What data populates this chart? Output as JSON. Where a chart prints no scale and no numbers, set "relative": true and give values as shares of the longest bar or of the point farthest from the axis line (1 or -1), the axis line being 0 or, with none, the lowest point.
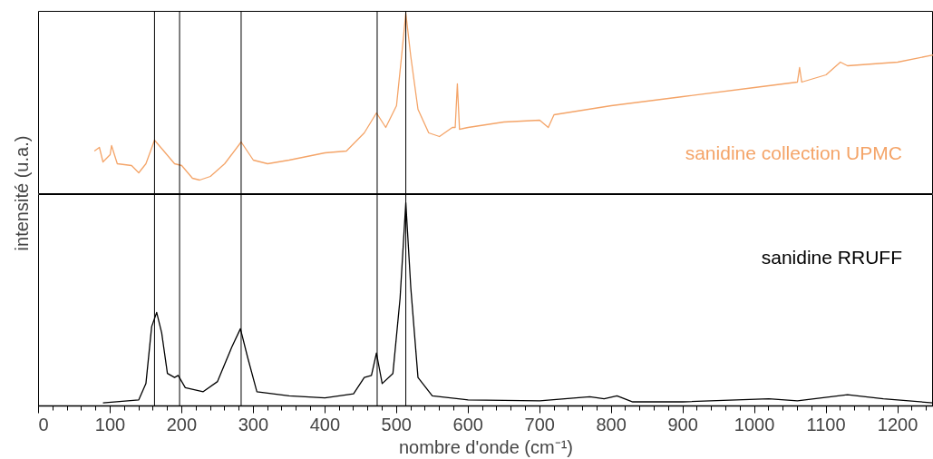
{
  "chart_data": [
    {
      "type": "line",
      "relative": true,
      "ylabel": "intensité (u.a.)",
      "tick_labels": false,
      "grid": false,
      "xlim": [
        0,
        1250
      ],
      "xticks": [
        0,
        100,
        200,
        300,
        400,
        500,
        600,
        700,
        800,
        900,
        1000,
        1100,
        1200
      ],
      "ref_lines": [
        {
          "axis": "x",
          "value": 162
        },
        {
          "axis": "x",
          "value": 197
        },
        {
          "axis": "x",
          "value": 283
        },
        {
          "axis": "x",
          "value": 473
        },
        {
          "axis": "x",
          "value": 513
        }
      ],
      "series": [
        {
          "name": "sanidine collection UPMC",
          "color": "#f4a468",
          "x": [
            78,
            85,
            90,
            100,
            102,
            110,
            130,
            140,
            150,
            162,
            175,
            190,
            200,
            215,
            225,
            240,
            260,
            283,
            300,
            320,
            350,
            400,
            430,
            455,
            472,
            485,
            500,
            507,
            513,
            520,
            530,
            545,
            560,
            578,
            582,
            585,
            588,
            600,
            650,
            700,
            712,
            720,
            800,
            900,
            1000,
            1060,
            1063,
            1066,
            1100,
            1120,
            1130,
            1200,
            1250
          ],
          "values": [
            0.24,
            0.26,
            0.18,
            0.22,
            0.27,
            0.17,
            0.16,
            0.12,
            0.17,
            0.3,
            0.24,
            0.17,
            0.16,
            0.09,
            0.08,
            0.1,
            0.17,
            0.29,
            0.19,
            0.17,
            0.19,
            0.23,
            0.24,
            0.34,
            0.45,
            0.37,
            0.49,
            0.76,
            1.0,
            0.76,
            0.47,
            0.34,
            0.32,
            0.37,
            0.37,
            0.61,
            0.36,
            0.37,
            0.4,
            0.41,
            0.37,
            0.44,
            0.49,
            0.54,
            0.59,
            0.62,
            0.7,
            0.62,
            0.66,
            0.73,
            0.71,
            0.73,
            0.77
          ]
        }
      ]
    },
    {
      "type": "line",
      "relative": true,
      "xlabel": "nombre d'onde (cm⁻¹)",
      "tick_labels": "x",
      "grid": false,
      "xlim": [
        0,
        1250
      ],
      "xticks": [
        0,
        100,
        200,
        300,
        400,
        500,
        600,
        700,
        800,
        900,
        1000,
        1100,
        1200
      ],
      "ref_lines": [
        {
          "axis": "x",
          "value": 162
        },
        {
          "axis": "x",
          "value": 197
        },
        {
          "axis": "x",
          "value": 283
        },
        {
          "axis": "x",
          "value": 473
        },
        {
          "axis": "x",
          "value": 513
        }
      ],
      "series": [
        {
          "name": "sanidine RRUFF",
          "color": "#000000",
          "x": [
            90,
            140,
            150,
            158,
            165,
            172,
            180,
            190,
            195,
            205,
            230,
            250,
            270,
            282,
            292,
            305,
            350,
            400,
            440,
            455,
            465,
            472,
            480,
            495,
            505,
            513,
            520,
            530,
            550,
            600,
            700,
            770,
            790,
            808,
            830,
            900,
            1020,
            1060,
            1130,
            1180,
            1250
          ],
          "values": [
            0.015,
            0.03,
            0.11,
            0.39,
            0.46,
            0.36,
            0.16,
            0.14,
            0.15,
            0.09,
            0.07,
            0.12,
            0.29,
            0.38,
            0.24,
            0.07,
            0.05,
            0.04,
            0.06,
            0.14,
            0.15,
            0.26,
            0.11,
            0.16,
            0.53,
            1.0,
            0.58,
            0.14,
            0.05,
            0.03,
            0.025,
            0.045,
            0.035,
            0.05,
            0.02,
            0.02,
            0.035,
            0.025,
            0.055,
            0.035,
            0.015
          ]
        }
      ]
    }
  ]
}
